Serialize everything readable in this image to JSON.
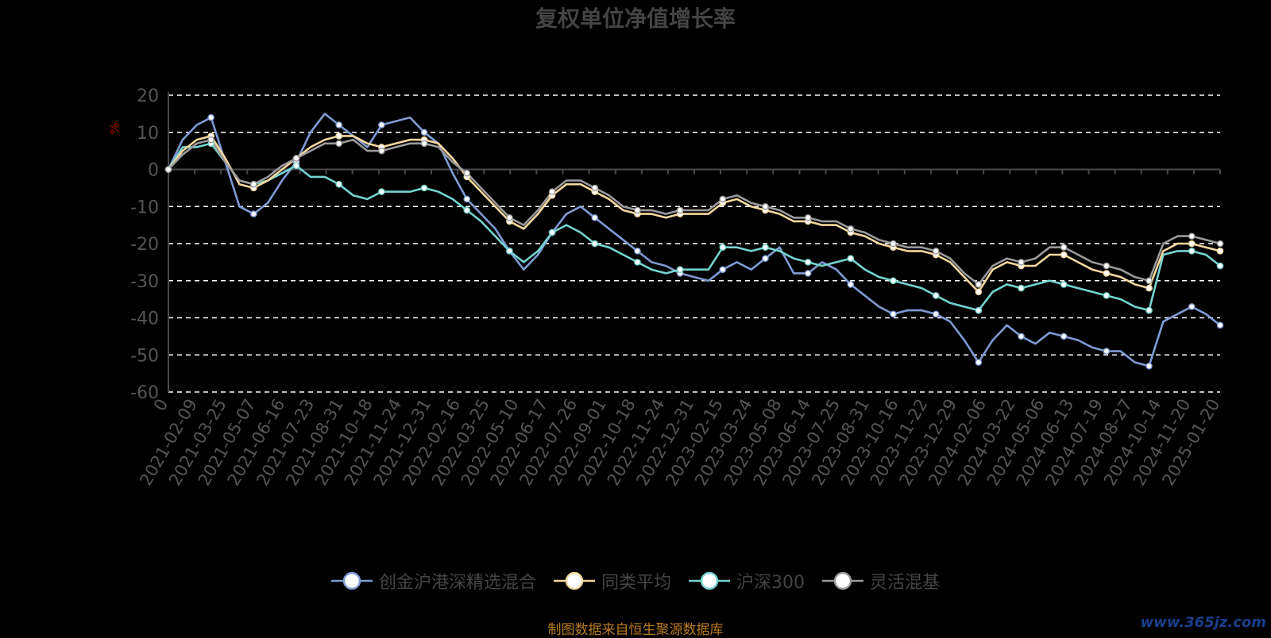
{
  "colors": {
    "background": "#000000",
    "grid": "#ffffff",
    "axis": "#4a4a4a",
    "tick_text": "#555555",
    "ylabel": "#b00000",
    "title": "#444444",
    "source_text": "#b87a1e",
    "watermark": "#1a3f8c"
  },
  "footer": {
    "source": "制图数据来自恒生聚源数据库",
    "watermark": "www.365jz.com"
  },
  "chart_data": {
    "type": "line",
    "title": "复权单位净值增长率",
    "ylabel": "%",
    "ylim": [
      -60,
      20
    ],
    "yticks": [
      20,
      10,
      0,
      -10,
      -20,
      -30,
      -40,
      -50,
      -60
    ],
    "grid": true,
    "legend_position": "bottom",
    "x_tick_labels": [
      "0",
      "2021-02-09",
      "2021-03-25",
      "2021-05-07",
      "2021-06-16",
      "2021-07-23",
      "2021-08-31",
      "2021-10-18",
      "2021-11-24",
      "2021-12-31",
      "2022-02-16",
      "2022-03-25",
      "2022-05-10",
      "2022-06-17",
      "2022-07-26",
      "2022-09-01",
      "2022-10-18",
      "2022-11-24",
      "2022-12-31",
      "2023-02-15",
      "2023-03-24",
      "2023-05-08",
      "2023-06-14",
      "2023-07-25",
      "2023-08-31",
      "2023-10-16",
      "2023-11-22",
      "2023-12-29",
      "2024-02-06",
      "2024-03-22",
      "2024-05-06",
      "2024-06-13",
      "2024-07-19",
      "2024-08-27",
      "2024-10-14",
      "2024-11-20",
      "2025-01-20"
    ],
    "x": [
      "0",
      "2021-02-01",
      "2021-02-09",
      "2021-02-24",
      "2021-03-10",
      "2021-03-25",
      "2021-04-15",
      "2021-05-07",
      "2021-05-25",
      "2021-06-16",
      "2021-07-05",
      "2021-07-23",
      "2021-08-10",
      "2021-08-31",
      "2021-09-22",
      "2021-10-18",
      "2021-11-05",
      "2021-11-24",
      "2021-12-13",
      "2021-12-31",
      "2022-01-20",
      "2022-02-16",
      "2022-03-07",
      "2022-03-25",
      "2022-04-20",
      "2022-05-10",
      "2022-05-27",
      "2022-06-17",
      "2022-07-06",
      "2022-07-26",
      "2022-08-12",
      "2022-09-01",
      "2022-09-23",
      "2022-10-18",
      "2022-11-04",
      "2022-11-24",
      "2022-12-13",
      "2022-12-31",
      "2023-01-20",
      "2023-02-15",
      "2023-03-06",
      "2023-03-24",
      "2023-04-14",
      "2023-05-08",
      "2023-05-26",
      "2023-06-14",
      "2023-07-05",
      "2023-07-25",
      "2023-08-11",
      "2023-08-31",
      "2023-09-22",
      "2023-10-16",
      "2023-11-02",
      "2023-11-22",
      "2023-12-11",
      "2023-12-29",
      "2024-01-19",
      "2024-02-06",
      "2024-03-04",
      "2024-03-22",
      "2024-04-15",
      "2024-05-06",
      "2024-05-24",
      "2024-06-13",
      "2024-07-02",
      "2024-07-19",
      "2024-08-07",
      "2024-08-27",
      "2024-09-20",
      "2024-10-14",
      "2024-10-31",
      "2024-11-20",
      "2024-12-10",
      "2024-12-30",
      "2025-01-20"
    ],
    "series": [
      {
        "name": "创金沪港深精选混合",
        "color": "#7f9bd3",
        "values": [
          0,
          8,
          12,
          14,
          2,
          -10,
          -12,
          -9,
          -3,
          2,
          10,
          15,
          12,
          9,
          6,
          12,
          13,
          14,
          10,
          7,
          -1,
          -8,
          -12,
          -16,
          -22,
          -27,
          -23,
          -17,
          -12,
          -10,
          -13,
          -16,
          -19,
          -22,
          -25,
          -26,
          -28,
          -29,
          -30,
          -27,
          -25,
          -27,
          -24,
          -21,
          -28,
          -28,
          -25,
          -27,
          -31,
          -34,
          -37,
          -39,
          -38,
          -38,
          -39,
          -41,
          -46,
          -52,
          -46,
          -42,
          -45,
          -47,
          -44,
          -45,
          -46,
          -48,
          -49,
          -49,
          -52,
          -53,
          -41,
          -39,
          -37,
          -39,
          -42
        ]
      },
      {
        "name": "同类平均",
        "color": "#f5d79e",
        "values": [
          0,
          5,
          8,
          9,
          3,
          -4,
          -5,
          -3,
          0,
          3,
          6,
          8,
          9,
          9,
          7,
          6,
          7,
          8,
          8,
          7,
          3,
          -2,
          -6,
          -10,
          -14,
          -16,
          -12,
          -7,
          -4,
          -4,
          -6,
          -8,
          -11,
          -12,
          -12,
          -13,
          -12,
          -12,
          -12,
          -9,
          -8,
          -10,
          -11,
          -12,
          -14,
          -14,
          -15,
          -15,
          -17,
          -18,
          -20,
          -21,
          -22,
          -22,
          -23,
          -25,
          -29,
          -33,
          -27,
          -25,
          -26,
          -26,
          -23,
          -23,
          -25,
          -27,
          -28,
          -29,
          -31,
          -32,
          -22,
          -20,
          -20,
          -21,
          -22
        ]
      },
      {
        "name": "沪深300",
        "color": "#74d4d0",
        "values": [
          0,
          6,
          6,
          7,
          2,
          -3,
          -4,
          -3,
          -1,
          1,
          -2,
          -2,
          -4,
          -7,
          -8,
          -6,
          -6,
          -6,
          -5,
          -6,
          -8,
          -11,
          -14,
          -18,
          -22,
          -25,
          -22,
          -17,
          -15,
          -17,
          -20,
          -21,
          -23,
          -25,
          -27,
          -28,
          -27,
          -27,
          -27,
          -21,
          -21,
          -22,
          -21,
          -22,
          -24,
          -25,
          -26,
          -25,
          -24,
          -27,
          -29,
          -30,
          -31,
          -32,
          -34,
          -36,
          -37,
          -38,
          -33,
          -31,
          -32,
          -31,
          -30,
          -31,
          -32,
          -33,
          -34,
          -35,
          -37,
          -38,
          -23,
          -22,
          -22,
          -23,
          -26
        ]
      },
      {
        "name": "灵活混基",
        "color": "#9a9a9a",
        "values": [
          0,
          4,
          7,
          8,
          2,
          -3,
          -4,
          -2,
          1,
          3,
          5,
          7,
          7,
          8,
          5,
          5,
          6,
          7,
          7,
          6,
          2,
          -1,
          -5,
          -9,
          -13,
          -15,
          -11,
          -6,
          -3,
          -3,
          -5,
          -7,
          -10,
          -11,
          -11,
          -12,
          -11,
          -11,
          -11,
          -8,
          -7,
          -9,
          -10,
          -11,
          -13,
          -13,
          -14,
          -14,
          -16,
          -17,
          -19,
          -20,
          -21,
          -21,
          -22,
          -24,
          -28,
          -31,
          -26,
          -24,
          -25,
          -24,
          -21,
          -21,
          -23,
          -25,
          -26,
          -27,
          -29,
          -30,
          -20,
          -18,
          -18,
          -19,
          -20
        ]
      }
    ]
  }
}
